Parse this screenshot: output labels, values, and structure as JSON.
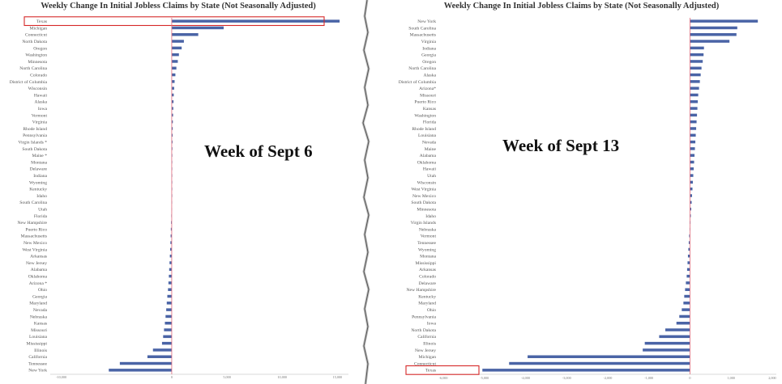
{
  "chart_data": [
    {
      "type": "bar",
      "orientation": "horizontal",
      "title": "Weekly Change In Initial Jobless Claims by State (Not Seasonally Adjusted)",
      "annotation": "Week of Sept 6",
      "highlight": "Texas",
      "xlim": [
        -11000,
        16000
      ],
      "x_ticks": [
        "-10,000",
        "0",
        "5,000",
        "10,000",
        "15,000"
      ],
      "x_tick_values": [
        -10000,
        0,
        5000,
        10000,
        15000
      ],
      "bar_color": "#4a64a6",
      "zero_line_color": "#e06a7a",
      "categories": [
        "Texas",
        "Michigan",
        "Connecticut",
        "North Dakota",
        "Oregon",
        "Washington",
        "Minnesota",
        "North Carolina",
        "Colorado",
        "District of Columbia",
        "Wisconsin",
        "Hawaii",
        "Alaska",
        "Iowa",
        "Vermont",
        "Virginia",
        "Rhode Island",
        "Pennsylvania",
        "Virgin Islands *",
        "South Dakota",
        "Maine *",
        "Montana",
        "Delaware",
        "Indiana",
        "Wyoming",
        "Kentucky",
        "Idaho",
        "South Carolina",
        "Utah",
        "Florida",
        "New Hampshire",
        "Puerto Rico",
        "Massachusetts",
        "New Mexico",
        "West Virginia",
        "Arkansas",
        "New Jersey",
        "Alabama",
        "Oklahoma",
        "Arizona *",
        "Ohio",
        "Georgia",
        "Maryland",
        "Nevada",
        "Nebraska",
        "Kansas",
        "Missouri",
        "Louisiana",
        "Mississippi",
        "Illinois",
        "California",
        "Tennessee",
        "New York"
      ],
      "values": [
        15200,
        4700,
        2400,
        1100,
        900,
        650,
        550,
        420,
        330,
        260,
        220,
        180,
        160,
        140,
        120,
        100,
        90,
        80,
        70,
        60,
        50,
        40,
        30,
        20,
        15,
        10,
        5,
        -20,
        -30,
        -40,
        -60,
        -80,
        -100,
        -120,
        -140,
        -170,
        -200,
        -230,
        -260,
        -300,
        -340,
        -400,
        -450,
        -500,
        -560,
        -620,
        -700,
        -780,
        -880,
        -1700,
        -2200,
        -4700,
        -5700
      ]
    },
    {
      "type": "bar",
      "orientation": "horizontal",
      "title": "Weekly Change In Initial Jobless Claims by State (Not Seasonally Adjusted)",
      "annotation": "Week of Sept 13",
      "highlight": "Texas",
      "xlim": [
        -6100,
        2100
      ],
      "x_ticks": [
        "-6,000",
        "-5,000",
        "-4,000",
        "-3,000",
        "-2,000",
        "-1,000",
        "0",
        "1,000",
        "2,000"
      ],
      "x_tick_values": [
        -6000,
        -5000,
        -4000,
        -3000,
        -2000,
        -1000,
        0,
        1000,
        2000
      ],
      "bar_color": "#4a64a6",
      "zero_line_color": "#e06a7a",
      "categories": [
        "New York",
        "South Carolina",
        "Massachusetts",
        "Virginia",
        "Indiana",
        "Georgia",
        "Oregon",
        "North Carolina",
        "Alaska",
        "District of Columbia",
        "Arizona*",
        "Missouri",
        "Puerto Rico",
        "Kansas",
        "Washington",
        "Florida",
        "Rhode Island",
        "Louisiana",
        "Nevada",
        "Maine",
        "Alabama",
        "Oklahoma",
        "Hawaii",
        "Utah",
        "Wisconsin",
        "West Virginia",
        "New Mexico",
        "South Dakota",
        "Minnesota",
        "Idaho",
        "Virgin Islands",
        "Nebraska",
        "Vermont",
        "Tennessee",
        "Wyoming",
        "Montana",
        "Mississippi",
        "Arkansas",
        "Colorado",
        "Delaware",
        "New Hampshire",
        "Kentucky",
        "Maryland",
        "Ohio",
        "Pennsylvania",
        "Iowa",
        "North Dakota",
        "California",
        "Illinois",
        "New Jersey",
        "Michigan",
        "Connecticut",
        "Texas"
      ],
      "values": [
        1650,
        1150,
        1130,
        960,
        340,
        330,
        310,
        280,
        260,
        240,
        220,
        200,
        190,
        180,
        170,
        160,
        150,
        140,
        130,
        120,
        110,
        100,
        90,
        80,
        70,
        60,
        50,
        40,
        30,
        20,
        10,
        -10,
        -20,
        -30,
        -40,
        -50,
        -60,
        -70,
        -80,
        -100,
        -120,
        -140,
        -160,
        -200,
        -260,
        -330,
        -600,
        -750,
        -1100,
        -1150,
        -3950,
        -4400,
        -5050
      ]
    }
  ]
}
